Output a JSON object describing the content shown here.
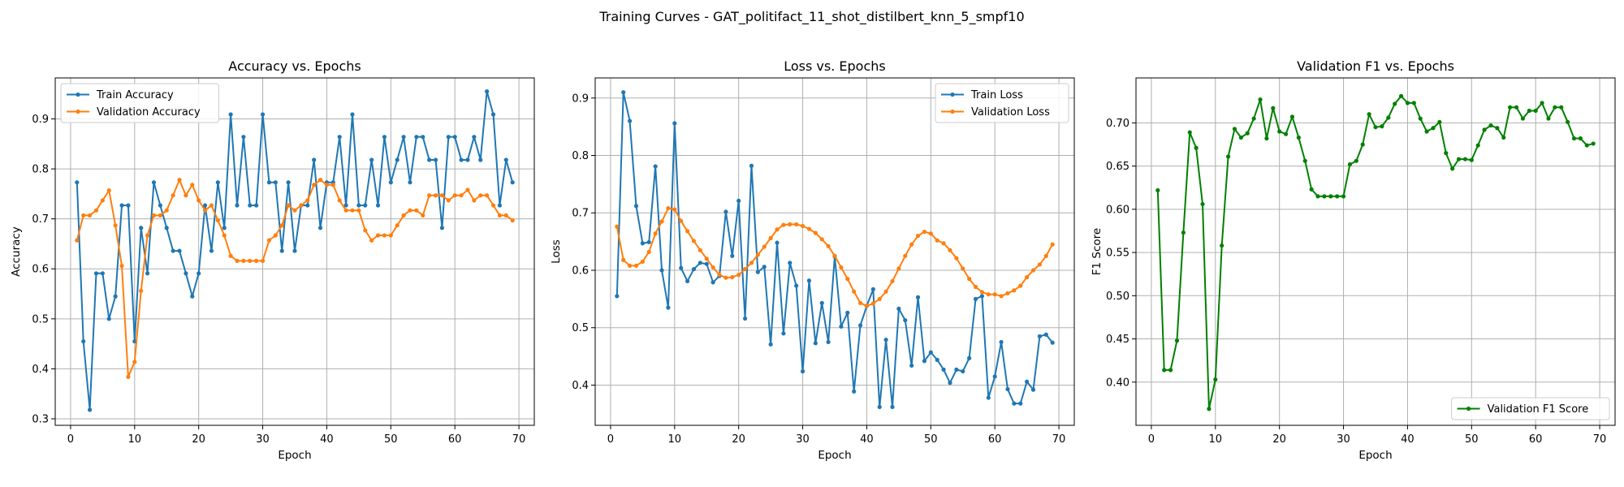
{
  "figure_title": "Training Curves - GAT_politifact_11_shot_distilbert_knn_5_smpf10",
  "colors": {
    "blue": "#1f77b4",
    "orange": "#ff7f0e",
    "green": "#008000",
    "grid": "#b0b0b0"
  },
  "chart_data": [
    {
      "type": "line",
      "title": "Accuracy vs. Epochs",
      "xlabel": "Epoch",
      "ylabel": "Accuracy",
      "xlim": [
        -2.4,
        72.4
      ],
      "ylim": [
        0.287,
        0.982
      ],
      "xticks": [
        0,
        10,
        20,
        30,
        40,
        50,
        60,
        70
      ],
      "yticks": [
        0.3,
        0.4,
        0.5,
        0.6,
        0.7,
        0.8,
        0.9
      ],
      "grid": true,
      "legend": "top-left",
      "x": [
        1,
        2,
        3,
        4,
        5,
        6,
        7,
        8,
        9,
        10,
        11,
        12,
        13,
        14,
        15,
        16,
        17,
        18,
        19,
        20,
        21,
        22,
        23,
        24,
        25,
        26,
        27,
        28,
        29,
        30,
        31,
        32,
        33,
        34,
        35,
        36,
        37,
        38,
        39,
        40,
        41,
        42,
        43,
        44,
        45,
        46,
        47,
        48,
        49,
        50,
        51,
        52,
        53,
        54,
        55,
        56,
        57,
        58,
        59,
        60,
        61,
        62,
        63,
        64,
        65,
        66,
        67,
        68,
        69
      ],
      "series": [
        {
          "name": "Train Accuracy",
          "color": "#1f77b4",
          "values": [
            0.773,
            0.455,
            0.318,
            0.591,
            0.591,
            0.5,
            0.545,
            0.727,
            0.727,
            0.455,
            0.682,
            0.591,
            0.773,
            0.727,
            0.682,
            0.636,
            0.636,
            0.591,
            0.545,
            0.591,
            0.727,
            0.636,
            0.773,
            0.682,
            0.909,
            0.727,
            0.864,
            0.727,
            0.727,
            0.909,
            0.773,
            0.773,
            0.636,
            0.773,
            0.636,
            0.727,
            0.727,
            0.818,
            0.682,
            0.773,
            0.773,
            0.864,
            0.727,
            0.909,
            0.727,
            0.727,
            0.818,
            0.727,
            0.864,
            0.773,
            0.818,
            0.864,
            0.773,
            0.864,
            0.864,
            0.818,
            0.818,
            0.682,
            0.864,
            0.864,
            0.818,
            0.818,
            0.864,
            0.818,
            0.955,
            0.909,
            0.727,
            0.818,
            0.773
          ]
        },
        {
          "name": "Validation Accuracy",
          "color": "#ff7f0e",
          "values": [
            0.657,
            0.707,
            0.707,
            0.717,
            0.737,
            0.757,
            0.687,
            0.606,
            0.384,
            0.414,
            0.556,
            0.667,
            0.707,
            0.707,
            0.717,
            0.747,
            0.778,
            0.747,
            0.768,
            0.737,
            0.717,
            0.727,
            0.697,
            0.667,
            0.626,
            0.616,
            0.616,
            0.616,
            0.616,
            0.616,
            0.657,
            0.667,
            0.687,
            0.727,
            0.717,
            0.727,
            0.737,
            0.768,
            0.778,
            0.768,
            0.768,
            0.737,
            0.717,
            0.717,
            0.717,
            0.677,
            0.657,
            0.667,
            0.667,
            0.667,
            0.687,
            0.707,
            0.717,
            0.717,
            0.707,
            0.747,
            0.747,
            0.747,
            0.737,
            0.747,
            0.747,
            0.758,
            0.737,
            0.747,
            0.747,
            0.727,
            0.707,
            0.707,
            0.697
          ]
        }
      ]
    },
    {
      "type": "line",
      "title": "Loss vs. Epochs",
      "xlabel": "Epoch",
      "ylabel": "Loss",
      "xlim": [
        -2.4,
        72.4
      ],
      "ylim": [
        0.33,
        0.935
      ],
      "xticks": [
        0,
        10,
        20,
        30,
        40,
        50,
        60,
        70
      ],
      "yticks": [
        0.4,
        0.5,
        0.6,
        0.7,
        0.8,
        0.9
      ],
      "grid": true,
      "legend": "top-right",
      "x": [
        1,
        2,
        3,
        4,
        5,
        6,
        7,
        8,
        9,
        10,
        11,
        12,
        13,
        14,
        15,
        16,
        17,
        18,
        19,
        20,
        21,
        22,
        23,
        24,
        25,
        26,
        27,
        28,
        29,
        30,
        31,
        32,
        33,
        34,
        35,
        36,
        37,
        38,
        39,
        40,
        41,
        42,
        43,
        44,
        45,
        46,
        47,
        48,
        49,
        50,
        51,
        52,
        53,
        54,
        55,
        56,
        57,
        58,
        59,
        60,
        61,
        62,
        63,
        64,
        65,
        66,
        67,
        68,
        69
      ],
      "series": [
        {
          "name": "Train Loss",
          "color": "#1f77b4",
          "values": [
            0.555,
            0.91,
            0.86,
            0.712,
            0.647,
            0.649,
            0.781,
            0.6,
            0.535,
            0.856,
            0.604,
            0.581,
            0.602,
            0.613,
            0.611,
            0.579,
            0.59,
            0.702,
            0.625,
            0.721,
            0.516,
            0.782,
            0.597,
            0.606,
            0.471,
            0.648,
            0.49,
            0.613,
            0.573,
            0.424,
            0.582,
            0.473,
            0.543,
            0.475,
            0.624,
            0.502,
            0.526,
            0.389,
            0.504,
            0.538,
            0.567,
            0.362,
            0.479,
            0.362,
            0.533,
            0.513,
            0.434,
            0.553,
            0.442,
            0.457,
            0.444,
            0.427,
            0.404,
            0.427,
            0.424,
            0.447,
            0.55,
            0.555,
            0.378,
            0.415,
            0.475,
            0.393,
            0.368,
            0.368,
            0.406,
            0.392,
            0.485,
            0.488,
            0.474
          ]
        },
        {
          "name": "Validation Loss",
          "color": "#ff7f0e",
          "values": [
            0.676,
            0.618,
            0.608,
            0.608,
            0.615,
            0.632,
            0.664,
            0.685,
            0.708,
            0.706,
            0.686,
            0.668,
            0.651,
            0.635,
            0.62,
            0.605,
            0.592,
            0.587,
            0.588,
            0.592,
            0.602,
            0.613,
            0.627,
            0.641,
            0.656,
            0.671,
            0.679,
            0.68,
            0.68,
            0.677,
            0.672,
            0.665,
            0.654,
            0.642,
            0.625,
            0.605,
            0.585,
            0.563,
            0.543,
            0.538,
            0.542,
            0.55,
            0.563,
            0.581,
            0.603,
            0.625,
            0.645,
            0.66,
            0.667,
            0.664,
            0.652,
            0.647,
            0.635,
            0.621,
            0.603,
            0.585,
            0.571,
            0.562,
            0.558,
            0.558,
            0.555,
            0.56,
            0.565,
            0.573,
            0.588,
            0.6,
            0.61,
            0.625,
            0.645
          ]
        }
      ]
    },
    {
      "type": "line",
      "title": "Validation F1 vs. Epochs",
      "xlabel": "Epoch",
      "ylabel": "F1 Score",
      "xlim": [
        -2.4,
        72.4
      ],
      "ylim": [
        0.35,
        0.752
      ],
      "xticks": [
        0,
        10,
        20,
        30,
        40,
        50,
        60,
        70
      ],
      "yticks": [
        0.4,
        0.45,
        0.5,
        0.55,
        0.6,
        0.65,
        0.7
      ],
      "grid": true,
      "legend": "bottom-right",
      "x": [
        1,
        2,
        3,
        4,
        5,
        6,
        7,
        8,
        9,
        10,
        11,
        12,
        13,
        14,
        15,
        16,
        17,
        18,
        19,
        20,
        21,
        22,
        23,
        24,
        25,
        26,
        27,
        28,
        29,
        30,
        31,
        32,
        33,
        34,
        35,
        36,
        37,
        38,
        39,
        40,
        41,
        42,
        43,
        44,
        45,
        46,
        47,
        48,
        49,
        50,
        51,
        52,
        53,
        54,
        55,
        56,
        57,
        58,
        59,
        60,
        61,
        62,
        63,
        64,
        65,
        66,
        67,
        68,
        69
      ],
      "series": [
        {
          "name": "Validation F1 Score",
          "color": "#008000",
          "values": [
            0.622,
            0.414,
            0.414,
            0.448,
            0.573,
            0.689,
            0.671,
            0.606,
            0.369,
            0.403,
            0.558,
            0.661,
            0.693,
            0.683,
            0.688,
            0.705,
            0.727,
            0.682,
            0.717,
            0.69,
            0.687,
            0.707,
            0.683,
            0.656,
            0.623,
            0.615,
            0.615,
            0.615,
            0.615,
            0.615,
            0.652,
            0.656,
            0.675,
            0.71,
            0.695,
            0.696,
            0.706,
            0.722,
            0.731,
            0.723,
            0.723,
            0.705,
            0.69,
            0.694,
            0.701,
            0.665,
            0.647,
            0.658,
            0.658,
            0.657,
            0.674,
            0.692,
            0.697,
            0.694,
            0.683,
            0.718,
            0.718,
            0.705,
            0.714,
            0.714,
            0.723,
            0.705,
            0.718,
            0.718,
            0.701,
            0.682,
            0.682,
            0.674,
            0.676
          ]
        }
      ]
    }
  ]
}
